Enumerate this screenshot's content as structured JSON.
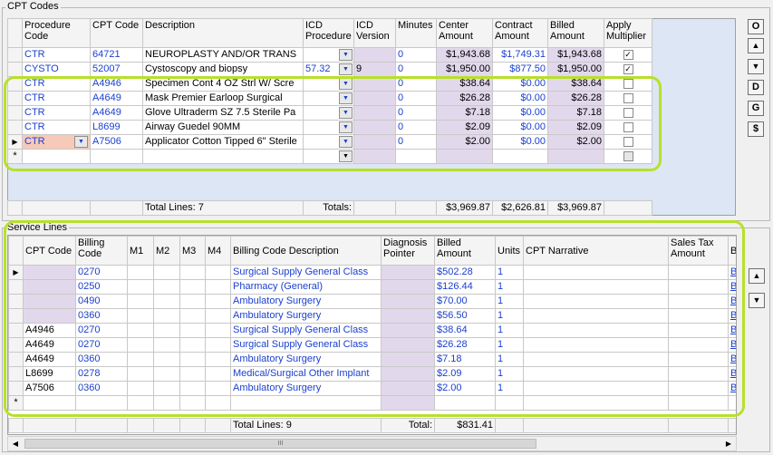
{
  "cpt": {
    "title": "CPT Codes",
    "headers": {
      "procedure_code": "Procedure Code",
      "cpt_code": "CPT Code",
      "description": "Description",
      "icd_procedure": "ICD Procedure",
      "icd_version": "ICD Version",
      "minutes": "Minutes",
      "center_amount": "Center Amount",
      "contract_amount": "Contract Amount",
      "billed_amount": "Billed Amount",
      "apply_multiplier": "Apply Multiplier"
    },
    "rows": [
      {
        "proc": "CTR",
        "cpt": "64721",
        "desc": "NEUROPLASTY AND/OR TRANS",
        "icd_proc": "",
        "icd_ver": "",
        "minutes": "0",
        "center": "$1,943.68",
        "contract": "$1,749.31",
        "billed": "$1,943.68",
        "apply": true
      },
      {
        "proc": "CYSTO",
        "cpt": "52007",
        "desc": "Cystoscopy and biopsy",
        "icd_proc": "57.32",
        "icd_ver": "9",
        "minutes": "0",
        "center": "$1,950.00",
        "contract": "$877.50",
        "billed": "$1,950.00",
        "apply": true
      },
      {
        "proc": "CTR",
        "cpt": "A4946",
        "desc": "Specimen Cont 4 OZ Strl W/ Scre",
        "icd_proc": "",
        "icd_ver": "",
        "minutes": "0",
        "center": "$38.64",
        "contract": "$0.00",
        "billed": "$38.64",
        "apply": false
      },
      {
        "proc": "CTR",
        "cpt": "A4649",
        "desc": "Mask  Premier Earloop Surgical",
        "icd_proc": "",
        "icd_ver": "",
        "minutes": "0",
        "center": "$26.28",
        "contract": "$0.00",
        "billed": "$26.28",
        "apply": false
      },
      {
        "proc": "CTR",
        "cpt": "A4649",
        "desc": "Glove Ultraderm SZ 7.5 Sterile Pa",
        "icd_proc": "",
        "icd_ver": "",
        "minutes": "0",
        "center": "$7.18",
        "contract": "$0.00",
        "billed": "$7.18",
        "apply": false
      },
      {
        "proc": "CTR",
        "cpt": "L8699",
        "desc": "Airway Guedel 90MM",
        "icd_proc": "",
        "icd_ver": "",
        "minutes": "0",
        "center": "$2.09",
        "contract": "$0.00",
        "billed": "$2.09",
        "apply": false
      },
      {
        "proc": "CTR",
        "cpt": "A7506",
        "desc": "Applicator Cotton Tipped 6\" Sterile",
        "icd_proc": "",
        "icd_ver": "",
        "minutes": "0",
        "center": "$2.00",
        "contract": "$0.00",
        "billed": "$2.00",
        "apply": false
      }
    ],
    "total_lines": "Total Lines: 7",
    "totals_label": "Totals:",
    "total_center": "$3,969.87",
    "total_contract": "$2,626.81",
    "total_billed": "$3,969.87",
    "side_buttons": [
      "O",
      "D",
      "G",
      "$"
    ]
  },
  "service": {
    "title": "Service Lines",
    "headers": {
      "cpt_code": "CPT Code",
      "billing_code": "Billing Code",
      "m1": "M1",
      "m2": "M2",
      "m3": "M3",
      "m4": "M4",
      "billing_desc": "Billing Code Description",
      "diag_pointer": "Diagnosis Pointer",
      "billed_amount": "Billed Amount",
      "units": "Units",
      "cpt_narrative": "CPT Narrative",
      "sales_tax": "Sales Tax Amount",
      "bi": "Bi"
    },
    "rows": [
      {
        "cpt": "",
        "billing": "0270",
        "desc": "Surgical Supply General Class",
        "amount": "$502.28",
        "units": "1",
        "bi": "Bi"
      },
      {
        "cpt": "",
        "billing": "0250",
        "desc": "Pharmacy (General)",
        "amount": "$126.44",
        "units": "1",
        "bi": "Bi"
      },
      {
        "cpt": "",
        "billing": "0490",
        "desc": "Ambulatory Surgery",
        "amount": "$70.00",
        "units": "1",
        "bi": "Bi"
      },
      {
        "cpt": "",
        "billing": "0360",
        "desc": "Ambulatory Surgery",
        "amount": "$56.50",
        "units": "1",
        "bi": "Bi"
      },
      {
        "cpt": "A4946",
        "billing": "0270",
        "desc": "Surgical Supply General Class",
        "amount": "$38.64",
        "units": "1",
        "bi": "Bi"
      },
      {
        "cpt": "A4649",
        "billing": "0270",
        "desc": "Surgical Supply General Class",
        "amount": "$26.28",
        "units": "1",
        "bi": "Bi"
      },
      {
        "cpt": "A4649",
        "billing": "0360",
        "desc": "Ambulatory Surgery",
        "amount": "$7.18",
        "units": "1",
        "bi": "Bi"
      },
      {
        "cpt": "L8699",
        "billing": "0278",
        "desc": "Medical/Surgical Other Implant",
        "amount": "$2.09",
        "units": "1",
        "bi": "Bi"
      },
      {
        "cpt": "A7506",
        "billing": "0360",
        "desc": "Ambulatory Surgery",
        "amount": "$2.00",
        "units": "1",
        "bi": "Bi"
      }
    ],
    "total_lines": "Total Lines: 9",
    "total_label": "Total:",
    "total_amount": "$831.41",
    "scroll_grip": "III"
  },
  "colors": {
    "highlight": "#b8e02a",
    "link_blue": "#1a3fd0",
    "lavender": "#e2d8ec",
    "cell_pink": "#f7c9b8",
    "panel": "#dce6f4"
  }
}
